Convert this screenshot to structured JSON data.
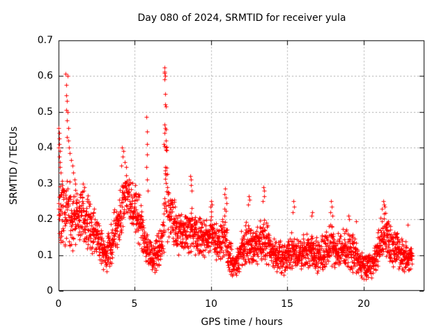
{
  "colors": {
    "background": "#ffffff",
    "axis": "#000000",
    "grid": "#a8a8a8",
    "marker": "#ff0000",
    "text": "#000000"
  },
  "chart_data": {
    "type": "scatter",
    "title": "Day 080 of 2024, SRMTID for receiver yula",
    "xlabel": "GPS time / hours",
    "ylabel": "SRMTID / TECUs",
    "marker": "plus",
    "marker_color": "#ff0000",
    "marker_size_px": 7,
    "grid": "dashed",
    "legend": "none",
    "xlim": [
      0,
      24
    ],
    "ylim": [
      0,
      0.7
    ],
    "x_ticks": [
      0,
      5,
      10,
      15,
      20
    ],
    "x_tick_labels": [
      "0",
      "5",
      "10",
      "15",
      "20"
    ],
    "y_ticks": [
      0,
      0.1,
      0.2,
      0.3,
      0.4,
      0.5,
      0.6,
      0.7
    ],
    "y_tick_labels": [
      "0",
      "0.1",
      "0.2",
      "0.3",
      "0.4",
      "0.5",
      "0.6",
      "0.7"
    ],
    "t_end": 23.2,
    "n_points": 2600,
    "seed": 7,
    "band_envelope_t_median_halfspread": [
      [
        0.0,
        0.24,
        0.11
      ],
      [
        0.25,
        0.21,
        0.08
      ],
      [
        0.6,
        0.22,
        0.09
      ],
      [
        1.0,
        0.2,
        0.08
      ],
      [
        1.4,
        0.21,
        0.07
      ],
      [
        1.9,
        0.19,
        0.07
      ],
      [
        2.4,
        0.16,
        0.06
      ],
      [
        2.8,
        0.12,
        0.05
      ],
      [
        3.1,
        0.1,
        0.045
      ],
      [
        3.5,
        0.14,
        0.06
      ],
      [
        4.0,
        0.21,
        0.08
      ],
      [
        4.3,
        0.27,
        0.07
      ],
      [
        4.7,
        0.26,
        0.07
      ],
      [
        5.1,
        0.22,
        0.07
      ],
      [
        5.5,
        0.17,
        0.06
      ],
      [
        5.9,
        0.1,
        0.05
      ],
      [
        6.3,
        0.09,
        0.04
      ],
      [
        6.6,
        0.13,
        0.05
      ],
      [
        6.85,
        0.16,
        0.06
      ],
      [
        6.95,
        0.3,
        0.15
      ],
      [
        7.05,
        0.3,
        0.15
      ],
      [
        7.15,
        0.23,
        0.09
      ],
      [
        7.45,
        0.2,
        0.07
      ],
      [
        7.8,
        0.17,
        0.06
      ],
      [
        8.2,
        0.16,
        0.05
      ],
      [
        8.65,
        0.18,
        0.06
      ],
      [
        9.0,
        0.15,
        0.05
      ],
      [
        9.5,
        0.15,
        0.05
      ],
      [
        10.0,
        0.16,
        0.06
      ],
      [
        10.45,
        0.13,
        0.05
      ],
      [
        10.9,
        0.16,
        0.07
      ],
      [
        11.2,
        0.1,
        0.05
      ],
      [
        11.5,
        0.065,
        0.03
      ],
      [
        11.9,
        0.11,
        0.05
      ],
      [
        12.4,
        0.14,
        0.06
      ],
      [
        12.85,
        0.12,
        0.05
      ],
      [
        13.4,
        0.15,
        0.06
      ],
      [
        13.85,
        0.12,
        0.05
      ],
      [
        14.3,
        0.1,
        0.045
      ],
      [
        14.8,
        0.09,
        0.04
      ],
      [
        15.3,
        0.11,
        0.05
      ],
      [
        15.8,
        0.1,
        0.045
      ],
      [
        16.3,
        0.11,
        0.05
      ],
      [
        16.8,
        0.1,
        0.045
      ],
      [
        17.3,
        0.11,
        0.05
      ],
      [
        17.8,
        0.13,
        0.055
      ],
      [
        18.3,
        0.11,
        0.05
      ],
      [
        18.8,
        0.12,
        0.05
      ],
      [
        19.3,
        0.11,
        0.05
      ],
      [
        19.7,
        0.08,
        0.04
      ],
      [
        20.1,
        0.065,
        0.03
      ],
      [
        20.6,
        0.075,
        0.035
      ],
      [
        21.0,
        0.12,
        0.055
      ],
      [
        21.35,
        0.16,
        0.065
      ],
      [
        21.7,
        0.14,
        0.06
      ],
      [
        22.1,
        0.12,
        0.05
      ],
      [
        22.6,
        0.1,
        0.045
      ],
      [
        23.0,
        0.095,
        0.04
      ],
      [
        23.2,
        0.09,
        0.035
      ]
    ],
    "peak_points": [
      [
        0.02,
        0.455
      ],
      [
        0.04,
        0.44
      ],
      [
        0.03,
        0.425
      ],
      [
        0.06,
        0.41
      ],
      [
        0.02,
        0.4
      ],
      [
        0.08,
        0.39
      ],
      [
        0.05,
        0.375
      ],
      [
        0.1,
        0.36
      ],
      [
        0.07,
        0.345
      ],
      [
        0.12,
        0.33
      ],
      [
        0.46,
        0.605
      ],
      [
        0.58,
        0.6
      ],
      [
        0.52,
        0.575
      ],
      [
        0.5,
        0.545
      ],
      [
        0.55,
        0.53
      ],
      [
        0.48,
        0.505
      ],
      [
        0.6,
        0.5
      ],
      [
        0.53,
        0.475
      ],
      [
        0.62,
        0.455
      ],
      [
        0.57,
        0.43
      ],
      [
        0.65,
        0.42
      ],
      [
        0.7,
        0.4
      ],
      [
        0.75,
        0.385
      ],
      [
        0.82,
        0.365
      ],
      [
        0.9,
        0.35
      ],
      [
        0.97,
        0.33
      ],
      [
        1.05,
        0.31
      ],
      [
        1.1,
        0.3
      ],
      [
        1.62,
        0.3
      ],
      [
        1.68,
        0.29
      ],
      [
        4.15,
        0.4
      ],
      [
        4.25,
        0.39
      ],
      [
        4.2,
        0.375
      ],
      [
        4.35,
        0.36
      ],
      [
        4.1,
        0.35
      ],
      [
        4.45,
        0.345
      ],
      [
        5.77,
        0.485
      ],
      [
        5.8,
        0.445
      ],
      [
        5.79,
        0.41
      ],
      [
        5.82,
        0.38
      ],
      [
        5.78,
        0.345
      ],
      [
        5.81,
        0.31
      ],
      [
        5.83,
        0.28
      ],
      [
        6.95,
        0.623
      ],
      [
        6.93,
        0.612
      ],
      [
        6.97,
        0.608
      ],
      [
        6.99,
        0.6
      ],
      [
        6.96,
        0.59
      ],
      [
        7.0,
        0.55
      ],
      [
        6.98,
        0.52
      ],
      [
        7.02,
        0.515
      ],
      [
        6.94,
        0.465
      ],
      [
        7.0,
        0.455
      ],
      [
        7.04,
        0.45
      ],
      [
        6.97,
        0.44
      ],
      [
        7.06,
        0.42
      ],
      [
        6.92,
        0.41
      ],
      [
        7.02,
        0.4
      ],
      [
        8.65,
        0.32
      ],
      [
        8.7,
        0.31
      ],
      [
        8.67,
        0.295
      ],
      [
        8.73,
        0.28
      ],
      [
        10.0,
        0.25
      ],
      [
        10.05,
        0.24
      ],
      [
        9.95,
        0.235
      ],
      [
        10.92,
        0.285
      ],
      [
        10.88,
        0.27
      ],
      [
        10.95,
        0.26
      ],
      [
        11.0,
        0.245
      ],
      [
        12.48,
        0.265
      ],
      [
        12.52,
        0.255
      ],
      [
        12.45,
        0.24
      ],
      [
        13.42,
        0.29
      ],
      [
        13.47,
        0.28
      ],
      [
        13.5,
        0.265
      ],
      [
        13.38,
        0.25
      ],
      [
        15.4,
        0.25
      ],
      [
        15.43,
        0.235
      ],
      [
        15.37,
        0.22
      ],
      [
        16.62,
        0.22
      ],
      [
        16.58,
        0.21
      ],
      [
        17.88,
        0.25
      ],
      [
        17.92,
        0.235
      ],
      [
        17.85,
        0.22
      ],
      [
        17.95,
        0.21
      ],
      [
        19.0,
        0.21
      ],
      [
        19.05,
        0.2
      ],
      [
        19.5,
        0.195
      ],
      [
        21.28,
        0.25
      ],
      [
        21.33,
        0.24
      ],
      [
        21.22,
        0.23
      ],
      [
        21.4,
        0.235
      ],
      [
        22.9,
        0.185
      ]
    ]
  }
}
